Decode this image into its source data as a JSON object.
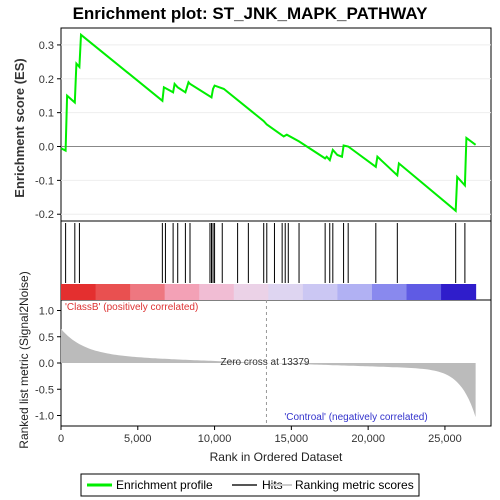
{
  "chart_data": {
    "type": "line",
    "title": "Enrichment plot: ST_JNK_MAPK_PATHWAY",
    "ylabel": "Enrichment score (ES)",
    "xlabel": "Rank in Ordered Dataset",
    "ylabel_bottom": "Ranked list metric (Signal2Noise)",
    "ylim": [
      -0.22,
      0.35
    ],
    "yticks": [
      -0.2,
      -0.1,
      0.0,
      0.1,
      0.2,
      0.3
    ],
    "ytick_labels": [
      "-0.2",
      "-0.1",
      "0.0",
      "0.1",
      "0.2",
      "0.3"
    ],
    "xlim": [
      0,
      28000
    ],
    "xticks": [
      0,
      5000,
      10000,
      15000,
      20000,
      25000
    ],
    "xtick_labels": [
      "0",
      "5,000",
      "10,000",
      "15,000",
      "20,000",
      "25,000"
    ],
    "metric_ylim": [
      -1.2,
      1.2
    ],
    "metric_yticks": [
      1.0,
      0.5,
      0.0,
      -0.5,
      -1.0
    ],
    "metric_ytick_labels": [
      "1.0",
      "0.5",
      "0.0",
      "-0.5",
      "-1.0"
    ],
    "enrichment_profile": {
      "x": [
        0,
        300,
        400,
        900,
        1000,
        1200,
        1300,
        6600,
        6700,
        7300,
        7400,
        7600,
        8100,
        8300,
        8400,
        9800,
        9900,
        10000,
        10600,
        13200,
        13400,
        14500,
        14700,
        15500,
        17200,
        17300,
        17500,
        17700,
        18000,
        18300,
        18400,
        18700,
        20500,
        20600,
        21900,
        22000,
        25700,
        25800,
        26300,
        26400,
        27000
      ],
      "y": [
        -0.005,
        -0.012,
        0.15,
        0.13,
        0.245,
        0.235,
        0.33,
        0.135,
        0.175,
        0.16,
        0.185,
        0.175,
        0.16,
        0.19,
        0.185,
        0.145,
        0.17,
        0.18,
        0.17,
        0.075,
        0.065,
        0.03,
        0.035,
        0.015,
        -0.035,
        -0.03,
        -0.04,
        -0.01,
        -0.025,
        -0.03,
        0.003,
        0.0,
        -0.06,
        -0.03,
        -0.085,
        -0.05,
        -0.19,
        -0.09,
        -0.115,
        0.025,
        0.005
      ]
    },
    "hits": [
      300,
      900,
      1200,
      6600,
      6800,
      7300,
      7600,
      8100,
      8400,
      9700,
      9800,
      9900,
      10000,
      10500,
      11500,
      12200,
      13200,
      13400,
      13900,
      14400,
      14600,
      14800,
      15500,
      17200,
      17500,
      17700,
      18400,
      18700,
      20500,
      21900,
      25700,
      26300
    ],
    "zero_cross_label": "Zero cross at 13379",
    "zero_cross": 13379,
    "class_pos_label": "'ClassB' (positively correlated)",
    "class_neg_label": "'Controal' (negatively correlated)",
    "legend": [
      {
        "label": "Enrichment profile",
        "color": "#00ee00"
      },
      {
        "label": "Hits",
        "color": "#555555"
      },
      {
        "label": "Ranking metric scores",
        "color": "#cccccc"
      }
    ],
    "colors": {
      "profile": "#00ee00",
      "hit": "#000000",
      "metric_fill": "#bbbbbb",
      "pos_label": "#dd3333",
      "neg_label": "#3333cc"
    }
  }
}
